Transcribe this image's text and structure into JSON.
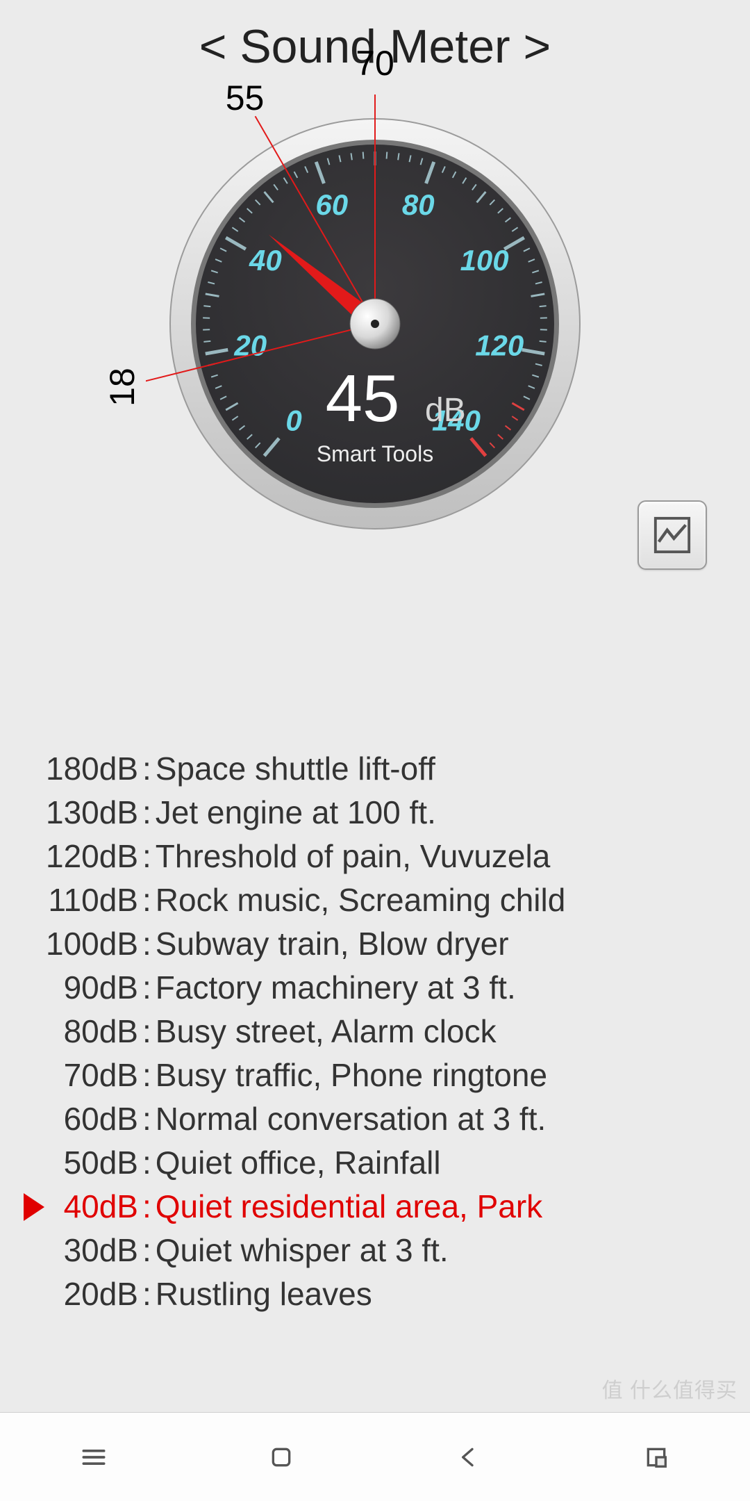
{
  "title": "< Sound Meter >",
  "gauge": {
    "min": 0,
    "max": 140,
    "start_angle_deg": -230,
    "end_angle_deg": 50,
    "major_ticks": [
      0,
      20,
      40,
      60,
      80,
      100,
      120,
      140
    ],
    "minor_step": 2,
    "current_value": 45,
    "unit": "dB",
    "brand": "Smart Tools",
    "needle_color": "#e21a1a",
    "tick_label_color": "#6bd8e8",
    "tick_color": "#9ab8bf",
    "redline_from": 130,
    "face_dark": "#2b2b2e",
    "face_mid": "#3c3a3d",
    "rim_light": "#f4f4f4",
    "rim_dark": "#bfbfbf",
    "markers": [
      {
        "value": 18,
        "label": "18",
        "line_color": "#e21a1a"
      },
      {
        "value": 55,
        "label": "55",
        "line_color": "#e21a1a"
      },
      {
        "value": 70,
        "label": "70",
        "line_color": "#e21a1a"
      }
    ],
    "reading_text_color": "#ffffff",
    "reading_unit_color": "#d6d6d6",
    "brand_color": "#eeeeee"
  },
  "chart_button": {
    "name": "chart-icon"
  },
  "reference": {
    "highlight_db": 40,
    "highlight_color": "#e00000",
    "text_color": "#333333",
    "rows": [
      {
        "db": "180dB",
        "desc": "Space shuttle lift-off"
      },
      {
        "db": "130dB",
        "desc": "Jet engine at 100 ft."
      },
      {
        "db": "120dB",
        "desc": "Threshold of pain, Vuvuzela"
      },
      {
        "db": "110dB",
        "desc": "Rock music, Screaming child"
      },
      {
        "db": "100dB",
        "desc": "Subway train, Blow dryer"
      },
      {
        "db": "90dB",
        "desc": "Factory machinery at 3 ft."
      },
      {
        "db": "80dB",
        "desc": "Busy street, Alarm clock"
      },
      {
        "db": "70dB",
        "desc": "Busy traffic, Phone ringtone"
      },
      {
        "db": "60dB",
        "desc": "Normal conversation at 3 ft."
      },
      {
        "db": "50dB",
        "desc": "Quiet office, Rainfall"
      },
      {
        "db": "40dB",
        "desc": "Quiet residential area, Park"
      },
      {
        "db": "30dB",
        "desc": "Quiet whisper at 3 ft."
      },
      {
        "db": "20dB",
        "desc": "Rustling leaves"
      }
    ]
  },
  "watermark": "值  什么值得买",
  "nav": {
    "items": [
      "menu",
      "home",
      "back",
      "expand"
    ]
  }
}
